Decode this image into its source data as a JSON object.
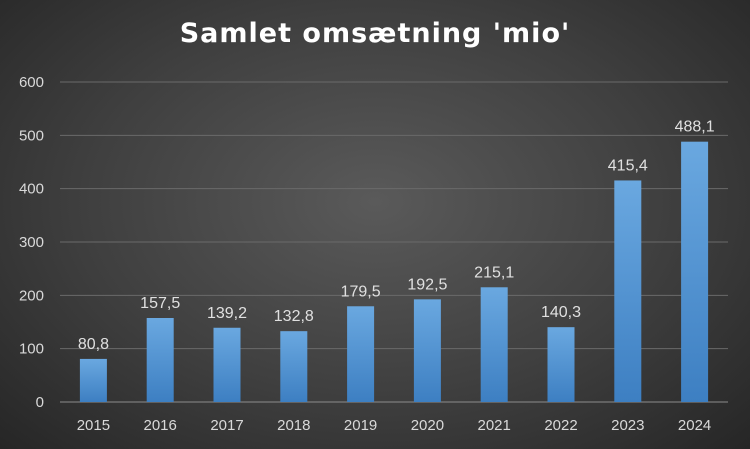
{
  "chart_data": {
    "type": "bar",
    "title": "Samlet omsætning 'mio'",
    "categories": [
      "2015",
      "2016",
      "2017",
      "2018",
      "2019",
      "2020",
      "2021",
      "2022",
      "2023",
      "2024"
    ],
    "values": [
      80.8,
      157.5,
      139.2,
      132.8,
      179.5,
      192.5,
      215.1,
      140.3,
      415.4,
      488.1
    ],
    "data_labels": [
      "80,8",
      "157,5",
      "139,2",
      "132,8",
      "179,5",
      "192,5",
      "215,1",
      "140,3",
      "415,4",
      "488,1"
    ],
    "y_ticks": [
      "0",
      "100",
      "200",
      "300",
      "400",
      "500",
      "600"
    ],
    "xlabel": "",
    "ylabel": "",
    "ylim": [
      0,
      600
    ],
    "grid": true,
    "legend": "none",
    "bar_color": "#5b9bd5",
    "background": "#3f3f3f"
  }
}
